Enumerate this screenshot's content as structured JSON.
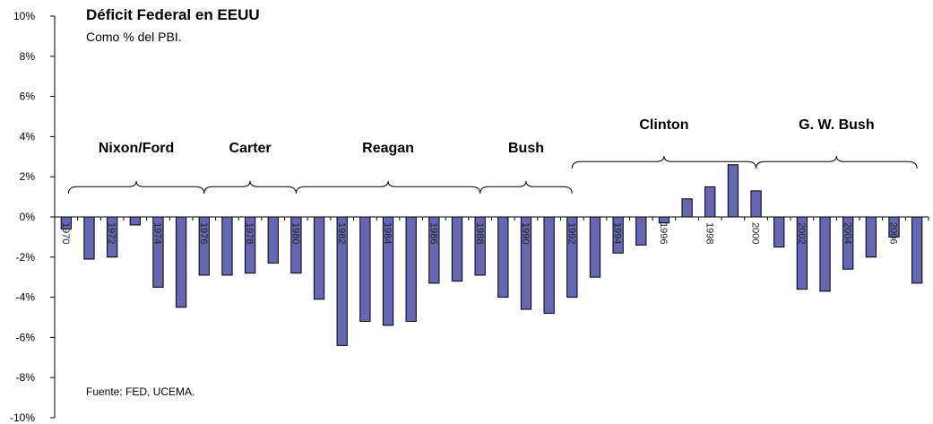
{
  "chart_data": {
    "type": "bar",
    "title": "Déficit Federal en EEUU",
    "subtitle": "Como % del PBI.",
    "source": "Fuente: FED, UCEMA.",
    "xlabel": "",
    "ylabel": "",
    "ylim": [
      -10,
      10
    ],
    "ytick_step": 2,
    "y_tick_labels": [
      "10%",
      "8%",
      "6%",
      "4%",
      "2%",
      "0%",
      "-2%",
      "-4%",
      "-6%",
      "-8%",
      "-10%"
    ],
    "grid": false,
    "bar_color": "#6666b3",
    "bar_edge_color": "#000000",
    "categories": [
      "1970",
      "1971",
      "1972",
      "1973",
      "1974",
      "1975",
      "1976",
      "1977",
      "1978",
      "1979",
      "1980",
      "1981",
      "1982",
      "1983",
      "1984",
      "1985",
      "1986",
      "1987",
      "1988",
      "1989",
      "1990",
      "1991",
      "1992",
      "1993",
      "1994",
      "1995",
      "1996",
      "1997",
      "1998",
      "1999",
      "2000",
      "2001",
      "2002",
      "2003",
      "2004",
      "2005",
      "2006",
      "2007"
    ],
    "category_labels_shown": [
      "1970",
      "",
      "1972",
      "",
      "1974",
      "",
      "1976",
      "",
      "1978",
      "",
      "1980",
      "",
      "1982",
      "",
      "1984",
      "",
      "1986",
      "",
      "1988",
      "",
      "1990",
      "",
      "1992",
      "",
      "1994",
      "",
      "1996",
      "",
      "1998",
      "",
      "2000",
      "",
      "2002",
      "",
      "2004",
      "",
      "2006",
      ""
    ],
    "values": [
      -0.6,
      -2.1,
      -2.0,
      -0.4,
      -3.5,
      -4.5,
      -2.9,
      -2.9,
      -2.8,
      -2.3,
      -2.8,
      -4.1,
      -6.4,
      -5.2,
      -5.4,
      -5.2,
      -3.3,
      -3.2,
      -2.9,
      -4.0,
      -4.6,
      -4.8,
      -4.0,
      -3.0,
      -1.8,
      -1.4,
      -0.3,
      0.9,
      1.5,
      2.6,
      1.3,
      -1.5,
      -3.6,
      -3.7,
      -2.6,
      -2.0,
      -1.0,
      -3.3
    ],
    "annotations": [
      {
        "label": "Nixon/Ford",
        "from_index": 0,
        "to_index": 6
      },
      {
        "label": "Carter",
        "from_index": 6,
        "to_index": 10
      },
      {
        "label": "Reagan",
        "from_index": 10,
        "to_index": 18
      },
      {
        "label": "Bush",
        "from_index": 18,
        "to_index": 22
      },
      {
        "label": "Clinton",
        "from_index": 22,
        "to_index": 30
      },
      {
        "label": "G. W. Bush",
        "from_index": 30,
        "to_index": 37
      }
    ]
  }
}
